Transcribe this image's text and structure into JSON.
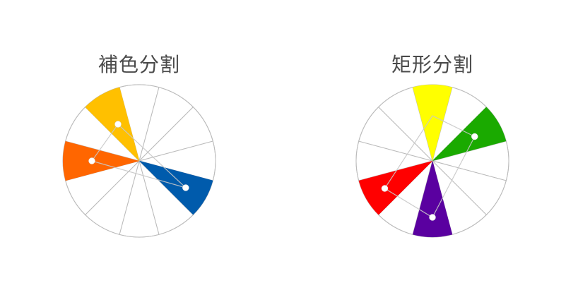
{
  "wheels": [
    {
      "title": "補色分割",
      "sectors": 12,
      "highlighted": [
        {
          "index": 11,
          "color": "#FFC000"
        },
        {
          "index": 9,
          "color": "#FF6600"
        },
        {
          "index": 4,
          "color": "#005BAC"
        }
      ],
      "connector_shape": "triangle"
    },
    {
      "title": "矩形分割",
      "sectors": 12,
      "highlighted": [
        {
          "index": 0,
          "color": "#FFFF00"
        },
        {
          "index": 2,
          "color": "#1AAA00"
        },
        {
          "index": 6,
          "color": "#5A00A0"
        },
        {
          "index": 8,
          "color": "#FF0000"
        }
      ],
      "connector_shape": "rectangle"
    }
  ],
  "line_color": "#BBBBBB"
}
